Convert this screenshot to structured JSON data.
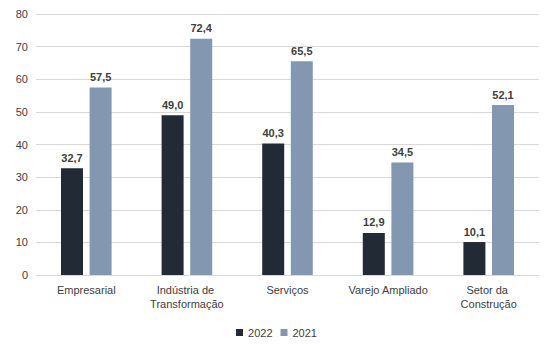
{
  "chart_data": {
    "type": "bar",
    "categories": [
      "Empresarial",
      "Indústria de Transformação",
      "Serviços",
      "Varejo Ampliado",
      "Setor da Construção"
    ],
    "series": [
      {
        "name": "2022",
        "color": "#222a35",
        "values": [
          32.7,
          49.0,
          40.3,
          12.9,
          10.1
        ],
        "value_labels": [
          "32,7",
          "49,0",
          "40,3",
          "12,9",
          "10,1"
        ]
      },
      {
        "name": "2021",
        "color": "#8497b0",
        "values": [
          57.5,
          72.4,
          65.5,
          34.5,
          52.1
        ],
        "value_labels": [
          "57,5",
          "72,4",
          "65,5",
          "34,5",
          "52,1"
        ]
      }
    ],
    "ylim": [
      0,
      80
    ],
    "yticks": [
      0,
      10,
      20,
      30,
      40,
      50,
      60,
      70,
      80
    ],
    "grid": true,
    "legend": "bottom",
    "data_labels": true
  }
}
